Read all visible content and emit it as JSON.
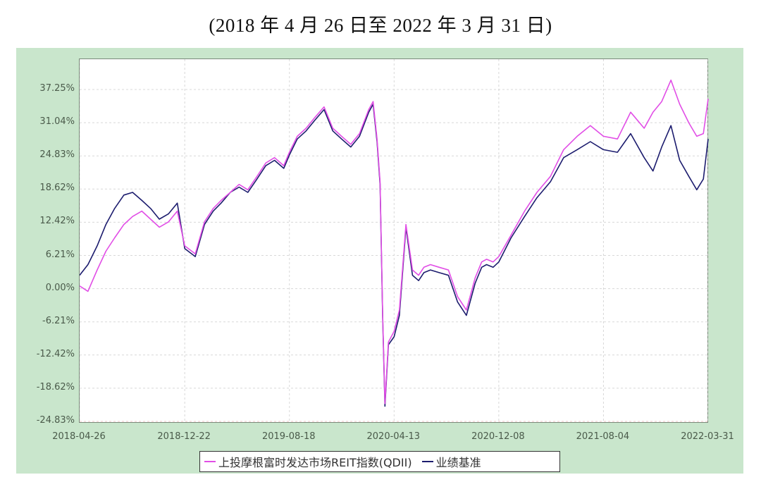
{
  "header": {
    "title": "(2018 年 4 月 26 日至 2022 年 3 月 31 日)"
  },
  "colors": {
    "panel_bg": "#c9e6cc",
    "fund": "#e14ee6",
    "benchmark": "#1c1c6e",
    "grid": "#d8d8d8"
  },
  "legend": {
    "items": [
      {
        "label": "上投摩根富时发达市场REIT指数(QDII)",
        "color": "#e14ee6"
      },
      {
        "label": "业绩基准",
        "color": "#1c1c6e"
      }
    ]
  },
  "chart_data": {
    "type": "line",
    "title": "(2018 年 4 月 26 日至 2022 年 3 月 31 日)",
    "xlabel": "",
    "ylabel": "",
    "ylim": [
      -24.83,
      40.5
    ],
    "grid": true,
    "legend_position": "bottom",
    "y_ticks": [
      "37.25%",
      "31.04%",
      "24.83%",
      "18.62%",
      "12.42%",
      "6.21%",
      "0.00%",
      "-6.21%",
      "-12.42%",
      "-18.62%",
      "-24.83%"
    ],
    "x_ticks": [
      "2018-04-26",
      "2018-12-22",
      "2019-08-18",
      "2020-04-13",
      "2020-12-08",
      "2021-08-04",
      "2022-03-31"
    ],
    "x": [
      "2018-04-26",
      "2018-05-15",
      "2018-06-05",
      "2018-06-25",
      "2018-07-15",
      "2018-08-05",
      "2018-08-25",
      "2018-09-15",
      "2018-10-05",
      "2018-10-25",
      "2018-11-15",
      "2018-12-05",
      "2018-12-22",
      "2019-01-15",
      "2019-02-05",
      "2019-02-25",
      "2019-03-15",
      "2019-04-05",
      "2019-04-25",
      "2019-05-15",
      "2019-06-05",
      "2019-06-25",
      "2019-07-15",
      "2019-08-05",
      "2019-08-18",
      "2019-09-05",
      "2019-09-25",
      "2019-10-15",
      "2019-11-05",
      "2019-11-25",
      "2019-12-15",
      "2020-01-05",
      "2020-01-25",
      "2020-02-15",
      "2020-02-25",
      "2020-03-05",
      "2020-03-12",
      "2020-03-18",
      "2020-03-23",
      "2020-03-31",
      "2020-04-13",
      "2020-04-25",
      "2020-05-10",
      "2020-05-25",
      "2020-06-08",
      "2020-06-20",
      "2020-07-05",
      "2020-07-25",
      "2020-08-15",
      "2020-09-05",
      "2020-09-25",
      "2020-10-15",
      "2020-10-30",
      "2020-11-10",
      "2020-11-25",
      "2020-12-08",
      "2021-01-05",
      "2021-02-05",
      "2021-03-05",
      "2021-04-05",
      "2021-05-05",
      "2021-06-05",
      "2021-07-05",
      "2021-08-04",
      "2021-09-05",
      "2021-10-05",
      "2021-11-05",
      "2021-11-25",
      "2021-12-15",
      "2022-01-05",
      "2022-01-25",
      "2022-02-15",
      "2022-03-05",
      "2022-03-20",
      "2022-03-31"
    ],
    "series": [
      {
        "name": "上投摩根富时发达市场REIT指数(QDII)",
        "values": [
          0.5,
          -0.5,
          3.5,
          7.0,
          9.5,
          12.0,
          13.5,
          14.5,
          13.0,
          11.5,
          12.5,
          14.5,
          8.0,
          6.5,
          12.5,
          15.0,
          16.5,
          18.0,
          19.5,
          18.5,
          21.0,
          23.5,
          24.5,
          23.0,
          25.5,
          28.5,
          30.0,
          32.0,
          34.0,
          30.0,
          28.5,
          27.0,
          29.0,
          33.5,
          35.0,
          28.0,
          20.0,
          -5.0,
          -21.5,
          -10.0,
          -8.0,
          -4.0,
          12.0,
          3.5,
          2.5,
          4.0,
          4.5,
          4.0,
          3.5,
          -1.5,
          -4.0,
          2.0,
          5.0,
          5.5,
          5.0,
          6.0,
          10.0,
          14.5,
          18.0,
          21.0,
          26.0,
          28.5,
          30.5,
          28.5,
          28.0,
          33.0,
          30.0,
          33.0,
          35.0,
          39.0,
          34.5,
          31.0,
          28.5,
          29.0,
          35.5
        ]
      },
      {
        "name": "业绩基准",
        "values": [
          2.5,
          4.5,
          8.0,
          12.0,
          15.0,
          17.5,
          18.0,
          16.5,
          15.0,
          13.0,
          14.0,
          16.0,
          7.5,
          6.0,
          12.0,
          14.5,
          16.0,
          18.0,
          19.0,
          18.0,
          20.5,
          23.0,
          24.0,
          22.5,
          25.0,
          28.0,
          29.5,
          31.5,
          33.5,
          29.5,
          28.0,
          26.5,
          28.5,
          33.0,
          34.5,
          27.5,
          19.5,
          -5.5,
          -22.0,
          -10.5,
          -9.0,
          -5.0,
          11.5,
          2.5,
          1.5,
          3.0,
          3.5,
          3.0,
          2.5,
          -2.5,
          -5.0,
          1.0,
          4.0,
          4.5,
          4.0,
          5.0,
          9.5,
          13.5,
          17.0,
          20.0,
          24.5,
          26.0,
          27.5,
          26.0,
          25.5,
          29.0,
          24.5,
          22.0,
          26.5,
          30.5,
          24.0,
          21.0,
          18.5,
          20.5,
          28.0
        ]
      }
    ]
  }
}
